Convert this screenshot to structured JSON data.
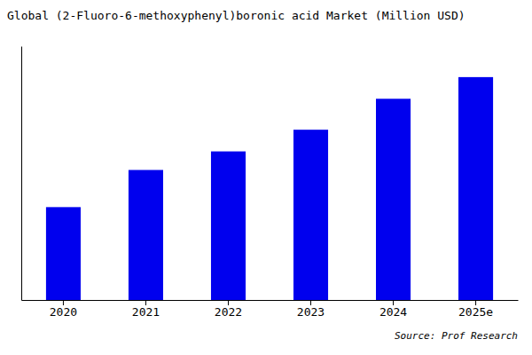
{
  "chart_data": {
    "type": "bar",
    "title": "Global (2-Fluoro-6-methoxyphenyl)boronic acid Market (Million USD)",
    "categories": [
      "2020",
      "2021",
      "2022",
      "2023",
      "2024",
      "2025e"
    ],
    "values": [
      30,
      42,
      48,
      55,
      65,
      72
    ],
    "color": "#0000EE",
    "ylim": [
      0,
      82
    ],
    "grid": false,
    "tick_labels": "x",
    "annotations": [
      "Source: Prof Research"
    ]
  }
}
